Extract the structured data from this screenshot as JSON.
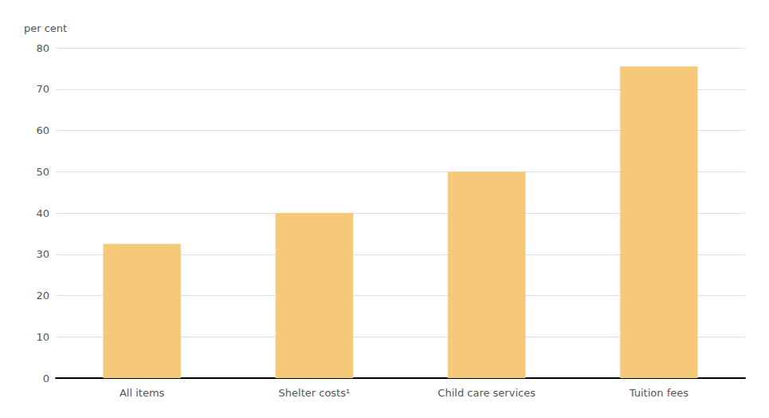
{
  "chart_data": {
    "type": "bar",
    "categories": [
      "All items",
      "Shelter costs¹",
      "Child care services",
      "Tuition fees"
    ],
    "values": [
      32.5,
      40.0,
      50.0,
      75.5
    ],
    "color": "#F5C87A",
    "ylabel": "per cent",
    "ylim": [
      0,
      80
    ],
    "yticks": [
      0,
      10,
      20,
      30,
      40,
      50,
      60,
      70,
      80
    ],
    "grid": true
  }
}
